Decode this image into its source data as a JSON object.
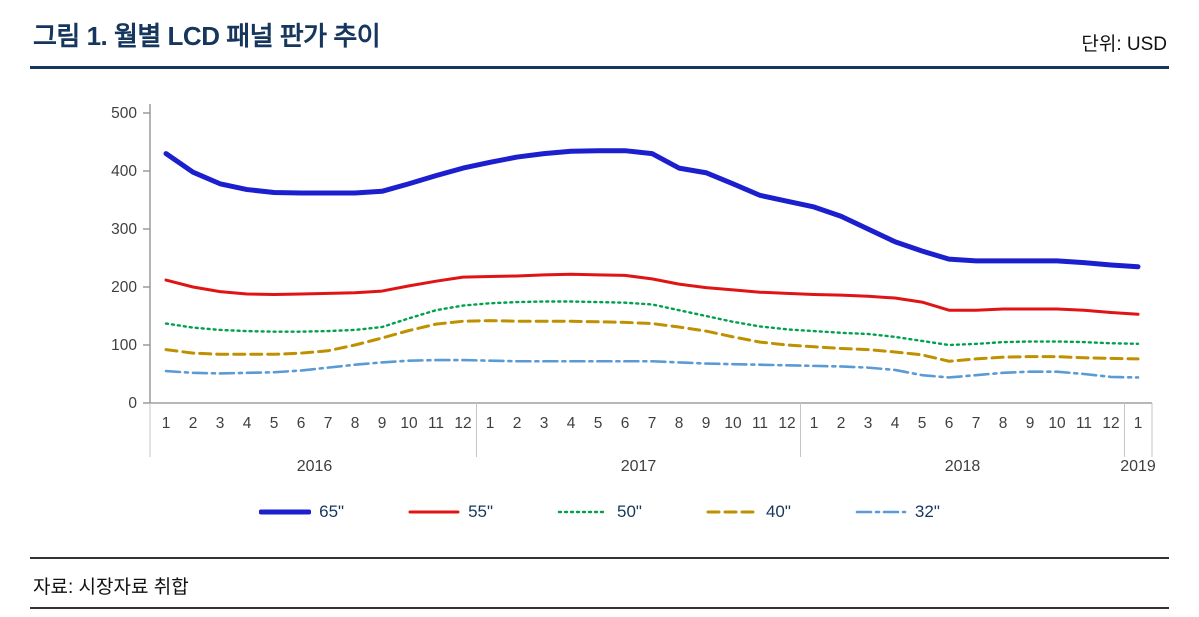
{
  "header": {
    "title": "그림 1. 월별 LCD 패널 판가 추이",
    "unit": "단위: USD"
  },
  "footer": {
    "source": "자료: 시장자료 취합"
  },
  "chart_data": {
    "type": "line",
    "title": "월별 LCD 패널 판가 추이",
    "unit": "USD",
    "grid": false,
    "legend_position": "bottom",
    "ylim": [
      0,
      500
    ],
    "yticks": [
      0,
      100,
      200,
      300,
      400,
      500
    ],
    "x_months": [
      "1",
      "2",
      "3",
      "4",
      "5",
      "6",
      "7",
      "8",
      "9",
      "10",
      "11",
      "12",
      "1",
      "2",
      "3",
      "4",
      "5",
      "6",
      "7",
      "8",
      "9",
      "10",
      "11",
      "12",
      "1",
      "2",
      "3",
      "4",
      "5",
      "6",
      "7",
      "8",
      "9",
      "10",
      "11",
      "12",
      "1"
    ],
    "year_groups": [
      {
        "label": "2016",
        "count": 12
      },
      {
        "label": "2017",
        "count": 12
      },
      {
        "label": "2018",
        "count": 12
      },
      {
        "label": "2019",
        "count": 1
      }
    ],
    "series": [
      {
        "name": "65\"",
        "color": "#1c1fce",
        "width": 5,
        "dash": "",
        "values": [
          430,
          398,
          378,
          368,
          363,
          362,
          362,
          362,
          365,
          378,
          392,
          405,
          415,
          424,
          430,
          434,
          435,
          435,
          430,
          405,
          397,
          378,
          358,
          348,
          338,
          322,
          300,
          278,
          262,
          248,
          245,
          245,
          245,
          245,
          242,
          238,
          235
        ]
      },
      {
        "name": "55\"",
        "color": "#e01414",
        "width": 3,
        "dash": "",
        "values": [
          212,
          200,
          192,
          188,
          187,
          188,
          189,
          190,
          193,
          202,
          210,
          217,
          218,
          219,
          221,
          222,
          221,
          220,
          214,
          205,
          199,
          195,
          191,
          189,
          187,
          186,
          184,
          181,
          174,
          160,
          160,
          162,
          162,
          162,
          160,
          156,
          153
        ]
      },
      {
        "name": "50\"",
        "color": "#00a14e",
        "width": 2.4,
        "dash": "2 4",
        "values": [
          137,
          130,
          126,
          124,
          123,
          123,
          124,
          126,
          131,
          146,
          160,
          168,
          172,
          174,
          175,
          175,
          174,
          173,
          170,
          160,
          150,
          140,
          132,
          127,
          124,
          121,
          119,
          114,
          107,
          100,
          102,
          105,
          106,
          106,
          105,
          103,
          102
        ]
      },
      {
        "name": "40\"",
        "color": "#bf9000",
        "width": 3,
        "dash": "11 6",
        "values": [
          92,
          86,
          84,
          84,
          84,
          86,
          90,
          100,
          112,
          125,
          136,
          141,
          142,
          141,
          141,
          141,
          140,
          139,
          137,
          131,
          124,
          114,
          105,
          100,
          97,
          94,
          92,
          88,
          83,
          72,
          76,
          79,
          80,
          80,
          78,
          77,
          76
        ]
      },
      {
        "name": "32\"",
        "color": "#5b9bd5",
        "width": 2.6,
        "dash": "14 5 3 5",
        "values": [
          55,
          52,
          51,
          52,
          53,
          56,
          61,
          66,
          70,
          73,
          74,
          74,
          73,
          72,
          72,
          72,
          72,
          72,
          72,
          70,
          68,
          67,
          66,
          65,
          64,
          63,
          61,
          57,
          48,
          44,
          48,
          52,
          54,
          54,
          50,
          45,
          44
        ]
      }
    ]
  }
}
